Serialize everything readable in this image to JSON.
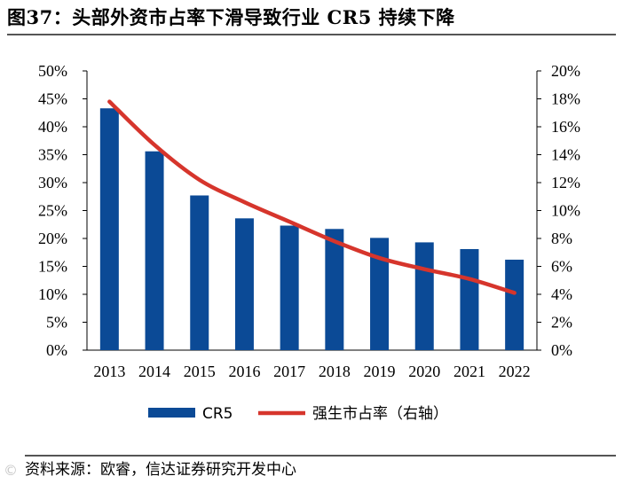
{
  "title": "图37：头部外资市占率下滑导致行业 CR5 持续下降",
  "source": "资料来源：欧睿，信达证券研究开发中心",
  "watermark": "©",
  "colors": {
    "bar": "#0b4a96",
    "line": "#d6352c"
  },
  "chart_data": {
    "type": "bar",
    "categories": [
      "2013",
      "2014",
      "2015",
      "2016",
      "2017",
      "2018",
      "2019",
      "2020",
      "2021",
      "2022"
    ],
    "series": [
      {
        "name": "CR5",
        "type": "bar",
        "axis": "left",
        "values": [
          43.3,
          35.6,
          27.7,
          23.6,
          22.3,
          21.7,
          20.1,
          19.3,
          18.1,
          16.2
        ]
      },
      {
        "name": "强生市占率（右轴）",
        "type": "line",
        "axis": "right",
        "values": [
          17.8,
          14.7,
          12.2,
          10.6,
          9.2,
          7.8,
          6.6,
          5.8,
          5.1,
          4.1
        ]
      }
    ],
    "y_left": {
      "min": 0,
      "max": 50,
      "step": 5,
      "ticks": [
        "0%",
        "5%",
        "10%",
        "15%",
        "20%",
        "25%",
        "30%",
        "35%",
        "40%",
        "45%",
        "50%"
      ]
    },
    "y_right": {
      "min": 0,
      "max": 20,
      "step": 2,
      "ticks": [
        "0%",
        "2%",
        "4%",
        "6%",
        "8%",
        "10%",
        "12%",
        "14%",
        "16%",
        "18%",
        "20%"
      ]
    },
    "legend_position": "bottom",
    "grid": false
  }
}
